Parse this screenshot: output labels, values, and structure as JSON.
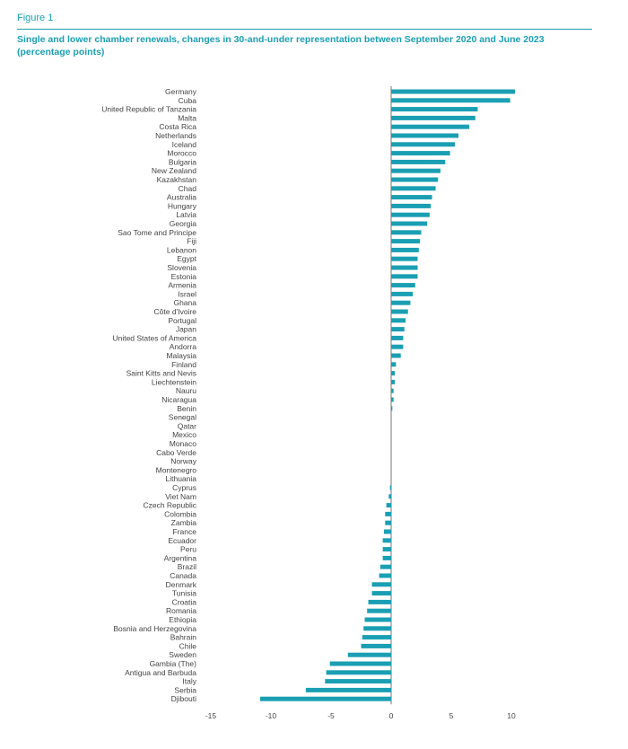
{
  "figure_label": "Figure 1",
  "chart_data": {
    "type": "bar",
    "orientation": "horizontal",
    "title": "Single and lower chamber renewals, changes in 30-and-under representation between September 2020 and June 2023 (percentage points)",
    "xlabel": "",
    "ylabel": "",
    "xlim": [
      -15,
      10
    ],
    "xticks": [
      -15,
      -10,
      -5,
      0,
      5,
      10
    ],
    "grid": false,
    "bar_color": "#1a9fb3",
    "categories": [
      "Germany",
      "Cuba",
      "United Republic of Tanzania",
      "Malta",
      "Costa Rica",
      "Netherlands",
      "Iceland",
      "Morocco",
      "Bulgaria",
      "New Zealand",
      "Kazakhstan",
      "Chad",
      "Australia",
      "Hungary",
      "Latvia",
      "Georgia",
      "Sao Tome and Principe",
      "Fiji",
      "Lebanon",
      "Egypt",
      "Slovenia",
      "Estonia",
      "Armenia",
      "Israel",
      "Ghana",
      "Côte d'Ivoire",
      "Portugal",
      "Japan",
      "United States of America",
      "Andorra",
      "Malaysia",
      "Finland",
      "Saint Kitts and Nevis",
      "Liechtenstein",
      "Nauru",
      "Nicaragua",
      "Benin",
      "Senegal",
      "Qatar",
      "Mexico",
      "Monaco",
      "Cabo Verde",
      "Norway",
      "Montenegro",
      "Lithuania",
      "Cyprus",
      "Viet Nam",
      "Czech Republic",
      "Colombia",
      "Zambia",
      "France",
      "Ecuador",
      "Peru",
      "Argentina",
      "Brazil",
      "Canada",
      "Denmark",
      "Tunisia",
      "Croatia",
      "Romania",
      "Ethiopia",
      "Bosnia and Herzegovina",
      "Bahrain",
      "Chile",
      "Sweden",
      "Gambia (The)",
      "Antigua and Barbuda",
      "Italy",
      "Serbia",
      "Djibouti"
    ],
    "values": [
      10.3,
      9.9,
      7.2,
      7.0,
      6.5,
      5.6,
      5.3,
      4.9,
      4.5,
      4.1,
      3.9,
      3.7,
      3.4,
      3.3,
      3.2,
      3.0,
      2.5,
      2.4,
      2.3,
      2.2,
      2.2,
      2.2,
      2.0,
      1.8,
      1.6,
      1.4,
      1.2,
      1.1,
      1.0,
      1.0,
      0.8,
      0.4,
      0.3,
      0.3,
      0.2,
      0.2,
      0.1,
      0,
      0,
      0,
      0,
      0,
      0,
      0,
      0,
      -0.1,
      -0.2,
      -0.4,
      -0.5,
      -0.5,
      -0.6,
      -0.7,
      -0.7,
      -0.7,
      -0.9,
      -1.0,
      -1.6,
      -1.6,
      -1.9,
      -2.0,
      -2.2,
      -2.3,
      -2.4,
      -2.5,
      -3.6,
      -5.1,
      -5.4,
      -5.5,
      -7.1,
      -10.9
    ]
  }
}
